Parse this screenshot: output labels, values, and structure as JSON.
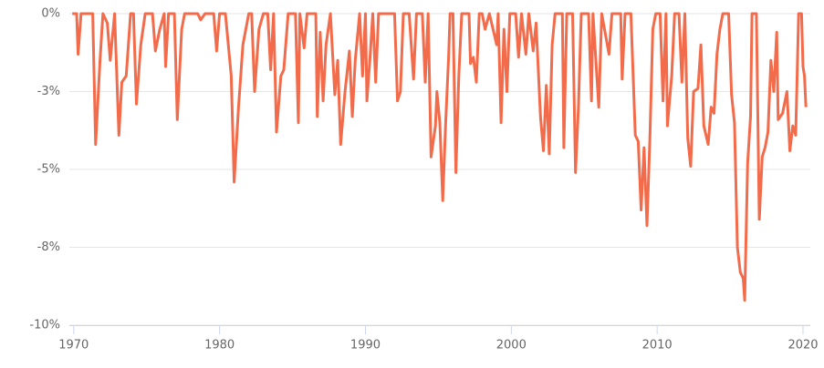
{
  "chart_data": {
    "type": "line",
    "x": [
      1969.9,
      1970.2,
      1970.3,
      1970.5,
      1971.3,
      1971.5,
      1971.8,
      1972,
      1972.3,
      1972.5,
      1972.8,
      1973.1,
      1973.3,
      1973.6,
      1973.9,
      1974.1,
      1974.3,
      1974.6,
      1974.9,
      1975.4,
      1975.6,
      1975.9,
      1976.2,
      1976.3,
      1976.5,
      1976.9,
      1977.1,
      1977.4,
      1977.6,
      1978.5,
      1978.7,
      1979,
      1979.6,
      1979.8,
      1980,
      1980.4,
      1980.8,
      1981,
      1981.3,
      1981.6,
      1982,
      1982.2,
      1982.4,
      1982.7,
      1983,
      1983.3,
      1983.5,
      1983.7,
      1983.9,
      1984.2,
      1984.4,
      1984.7,
      1985.2,
      1985.4,
      1985.5,
      1985.8,
      1986,
      1986.6,
      1986.7,
      1986.9,
      1987.1,
      1987.3,
      1987.6,
      1987.9,
      1988.1,
      1988.3,
      1988.6,
      1988.9,
      1989.1,
      1989.3,
      1989.6,
      1989.8,
      1990,
      1990.1,
      1990.3,
      1990.5,
      1990.7,
      1990.9,
      1992,
      1992.2,
      1992.4,
      1992.6,
      1993,
      1993.3,
      1993.5,
      1993.9,
      1994.1,
      1994.3,
      1994.5,
      1994.8,
      1994.9,
      1995.1,
      1995.3,
      1995.5,
      1995.7,
      1995.8,
      1996,
      1996.2,
      1996.4,
      1996.6,
      1997.1,
      1997.2,
      1997.4,
      1997.6,
      1997.8,
      1998,
      1998.2,
      1998.5,
      1999,
      1999.1,
      1999.3,
      1999.5,
      1999.7,
      1999.9,
      2000.3,
      2000.5,
      2000.7,
      2001,
      2001.2,
      2001.5,
      2001.7,
      2002,
      2002.2,
      2002.4,
      2002.6,
      2002.8,
      2003,
      2003.5,
      2003.6,
      2003.8,
      2004.2,
      2004.4,
      2004.6,
      2004.8,
      2005.3,
      2005.5,
      2005.6,
      2006,
      2006.2,
      2006.7,
      2006.9,
      2007.5,
      2007.6,
      2007.8,
      2008.2,
      2008.5,
      2008.7,
      2008.9,
      2009.1,
      2009.3,
      2009.5,
      2009.7,
      2009.9,
      2010.2,
      2010.4,
      2010.6,
      2010.7,
      2011,
      2011.2,
      2011.5,
      2011.7,
      2011.9,
      2012.1,
      2012.3,
      2012.5,
      2012.8,
      2013,
      2013.2,
      2013.5,
      2013.7,
      2013.9,
      2014.1,
      2014.3,
      2014.5,
      2014.9,
      2015.1,
      2015.3,
      2015.5,
      2015.7,
      2015.9,
      2016,
      2016.2,
      2016.4,
      2016.5,
      2016.8,
      2017,
      2017.2,
      2017.4,
      2017.6,
      2017.8,
      2018,
      2018.2,
      2018.3,
      2018.6,
      2018.9,
      2019.1,
      2019.3,
      2019.5,
      2019.7,
      2019.9,
      2020,
      2020.1,
      2020.2
    ],
    "values": [
      0,
      0,
      -1.3,
      0,
      0,
      -4.2,
      -1.5,
      0,
      -0.3,
      -1.5,
      0,
      -3.9,
      -2.2,
      -2,
      0,
      0,
      -2.9,
      -1,
      0,
      0,
      -1.2,
      -0.5,
      0,
      -1.7,
      0,
      0,
      -3.4,
      -0.5,
      0,
      0,
      -0.2,
      0,
      0,
      -1.2,
      0,
      0,
      -2,
      -5.4,
      -3,
      -1,
      0,
      0,
      -2.5,
      -0.5,
      0,
      0,
      -1.8,
      0,
      -3.8,
      -2,
      -1.8,
      0,
      0,
      -3.5,
      0,
      -1.1,
      0,
      0,
      -3.3,
      -0.6,
      -2.8,
      -1,
      0,
      -2.6,
      -1.5,
      -4.2,
      -2.5,
      -1.2,
      -3.3,
      -1.5,
      0,
      -2,
      0,
      -2.8,
      -1.5,
      0,
      -2.2,
      0,
      0,
      -2.8,
      -2.5,
      0,
      0,
      -2.1,
      0,
      0,
      -2.2,
      0,
      -4.6,
      -3.6,
      -2.5,
      -3.5,
      -6,
      -3.5,
      -1.4,
      0,
      0,
      -5.1,
      -2,
      0,
      0,
      -1.6,
      -1.4,
      -2.2,
      0,
      0,
      -0.5,
      0,
      -1,
      0,
      -3.5,
      -0.5,
      -2.5,
      0,
      0,
      -1.4,
      0,
      -1.3,
      0,
      -1.2,
      -0.3,
      -3.3,
      -4.4,
      -2.3,
      -4.5,
      -1,
      0,
      0,
      -4.3,
      0,
      0,
      -5.1,
      -3,
      0,
      0,
      -2.8,
      0,
      -3,
      0,
      -1.3,
      0,
      0,
      -2.1,
      0,
      0,
      -3.9,
      -4.1,
      -6.3,
      -4.3,
      -6.8,
      -4,
      -0.5,
      0,
      0,
      -2.8,
      0,
      -3.6,
      -2,
      0,
      0,
      -2.2,
      0,
      -4,
      -4.9,
      -2.5,
      -2.4,
      -1,
      -3.6,
      -4.2,
      -3,
      -3.2,
      -1.3,
      -0.5,
      0,
      0,
      -2.6,
      -3.5,
      -7.5,
      -8.3,
      -8.5,
      -9.2,
      -4.8,
      -3.3,
      0,
      0,
      -6.6,
      -4.6,
      -4.3,
      -3.8,
      -1.5,
      -2.5,
      -0.6,
      -3.4,
      -3.2,
      -2.5,
      -4.4,
      -3.6,
      -3.9,
      0,
      0,
      -1.7,
      -2,
      -3
    ],
    "color": "#f26b4b",
    "xlim": [
      1969.7,
      2020.5
    ],
    "xticks": [
      1970,
      1980,
      1990,
      2000,
      2010,
      2020
    ],
    "ylim": [
      -10,
      0
    ],
    "yticks": [
      {
        "value": 0,
        "label": "0%"
      },
      {
        "value": -2.5,
        "label": "-3%"
      },
      {
        "value": -5,
        "label": "-5%"
      },
      {
        "value": -7.5,
        "label": "-8%"
      },
      {
        "value": -10,
        "label": "-10%"
      }
    ],
    "grid": true
  }
}
